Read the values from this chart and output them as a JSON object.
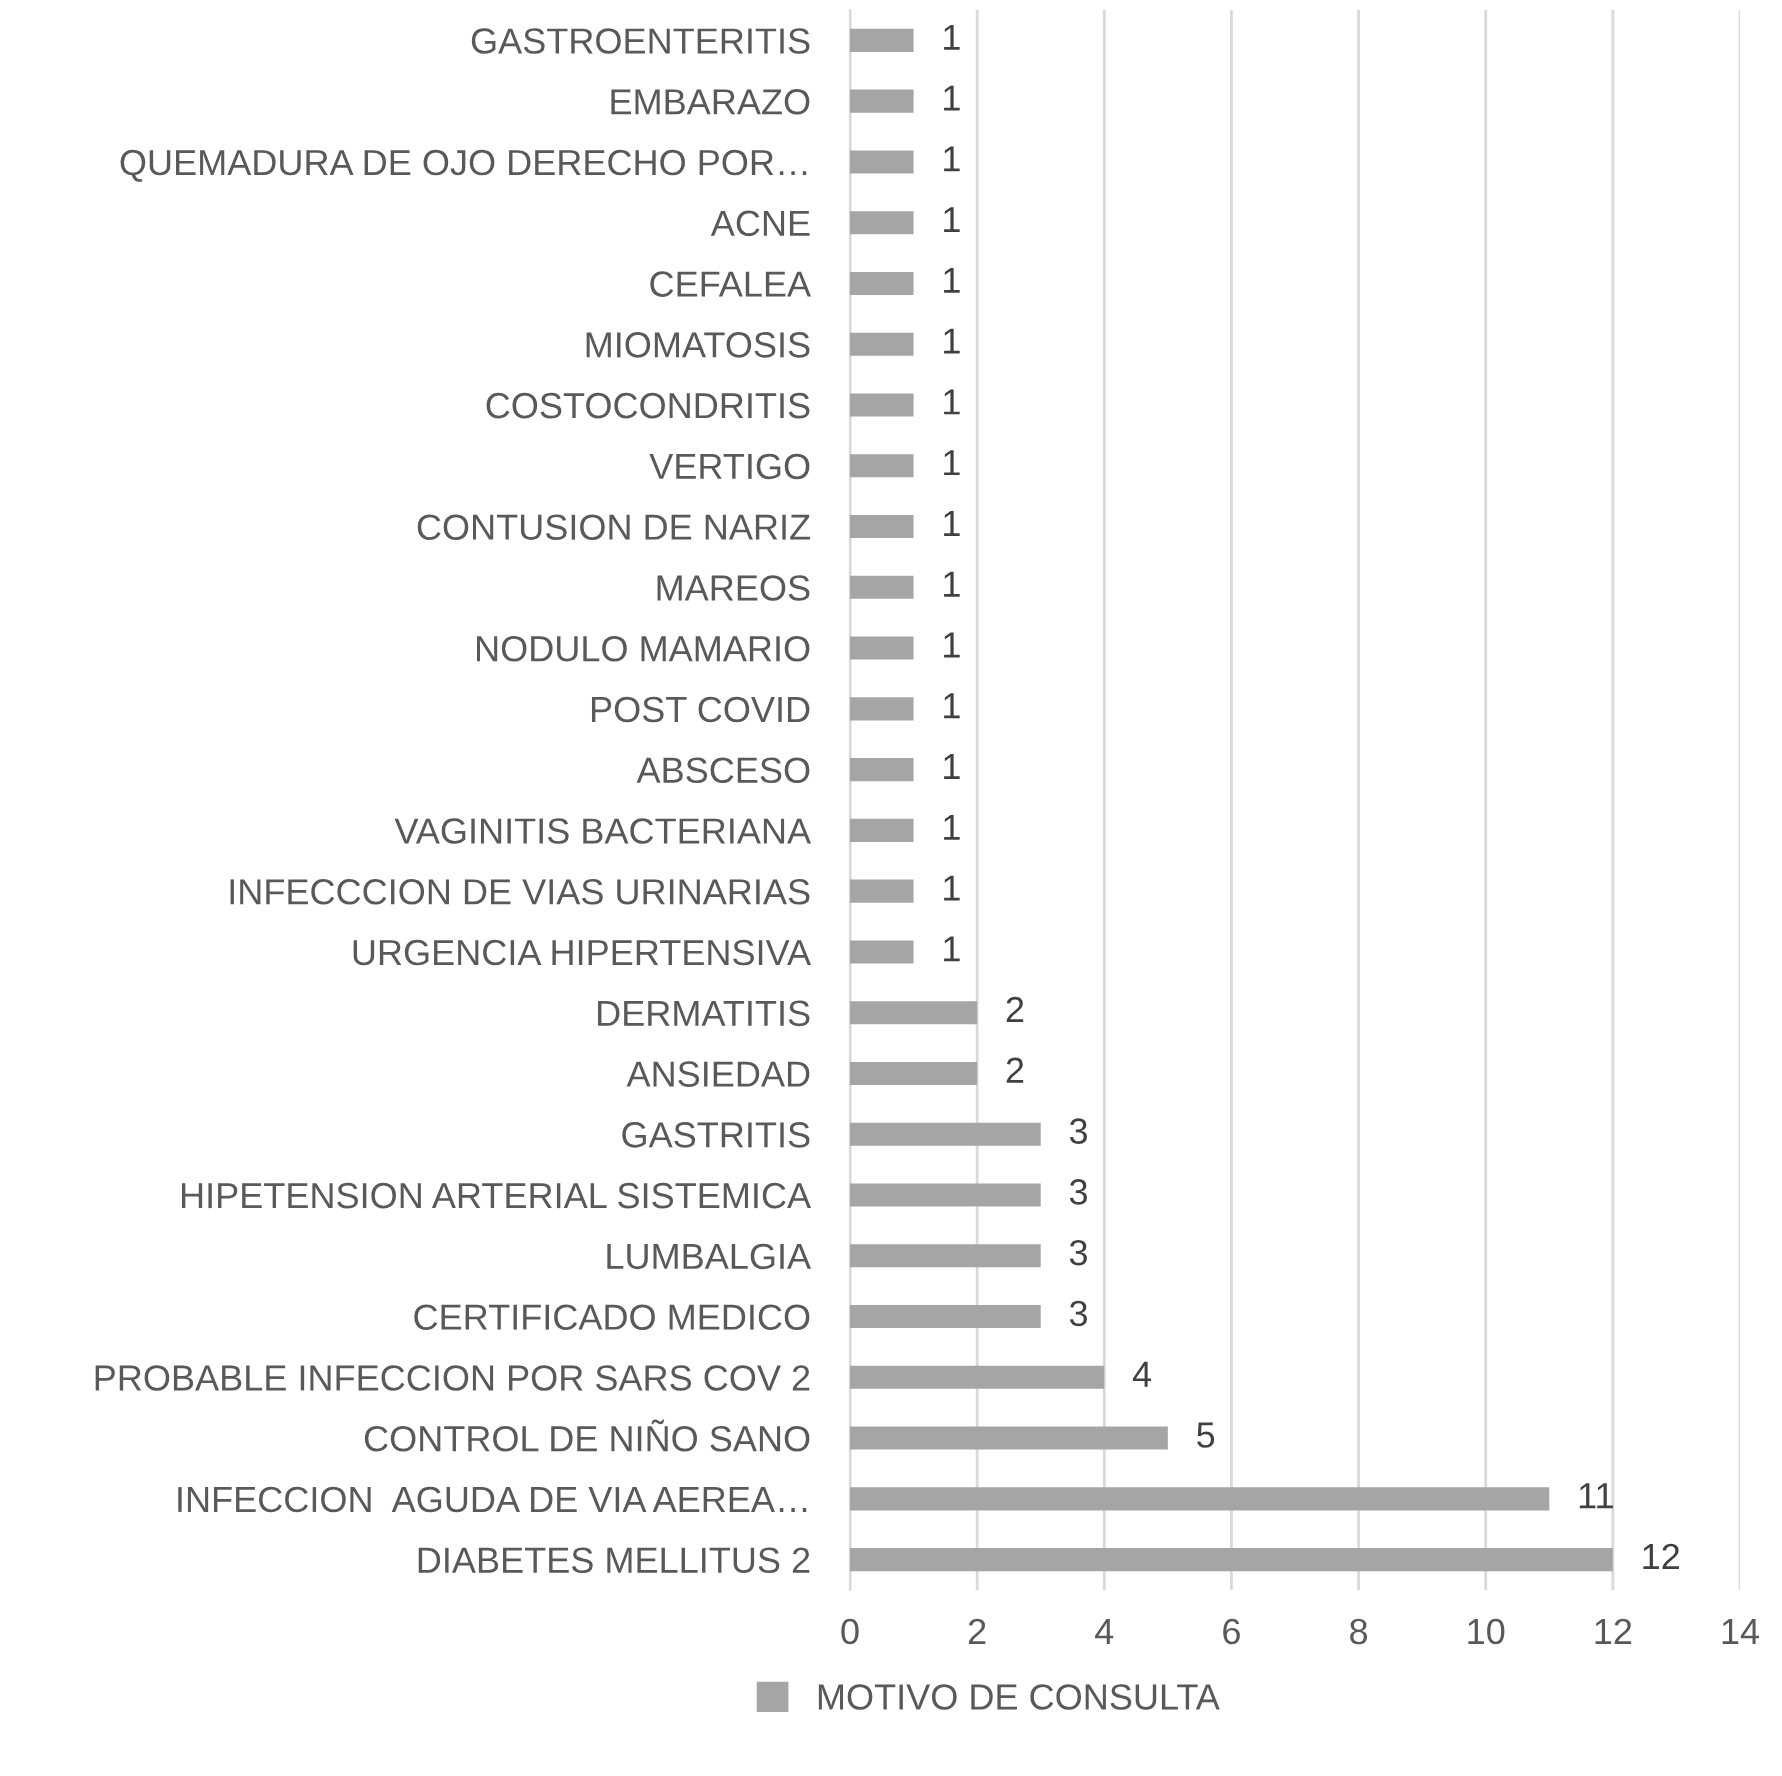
{
  "chart_data": {
    "type": "bar",
    "orientation": "horizontal",
    "categories": [
      "GASTROENTERITIS",
      "EMBARAZO",
      "QUEMADURA DE OJO DERECHO POR…",
      "ACNE",
      "CEFALEA",
      "MIOMATOSIS",
      "COSTOCONDRITIS",
      "VERTIGO",
      "CONTUSION DE NARIZ",
      "MAREOS",
      "NODULO MAMARIO",
      "POST COVID",
      "ABSCESO",
      "VAGINITIS BACTERIANA",
      "INFECCCION DE VIAS URINARIAS",
      "URGENCIA HIPERTENSIVA",
      "DERMATITIS",
      "ANSIEDAD",
      "GASTRITIS",
      "HIPETENSION ARTERIAL SISTEMICA",
      "LUMBALGIA",
      "CERTIFICADO MEDICO",
      "PROBABLE INFECCION POR SARS COV 2",
      "CONTROL DE NIÑO SANO",
      "INFECCION  AGUDA DE VIA AEREA…",
      "DIABETES MELLITUS 2"
    ],
    "series": [
      {
        "name": "MOTIVO DE CONSULTA",
        "color": "#a5a5a5",
        "values": [
          1,
          1,
          1,
          1,
          1,
          1,
          1,
          1,
          1,
          1,
          1,
          1,
          1,
          1,
          1,
          1,
          2,
          2,
          3,
          3,
          3,
          3,
          4,
          5,
          11,
          12
        ]
      }
    ],
    "xlim": [
      0,
      14
    ],
    "xticks": [
      0,
      2,
      4,
      6,
      8,
      10,
      12,
      14
    ],
    "grid": "x",
    "legend": "bottom",
    "data_labels": true
  }
}
